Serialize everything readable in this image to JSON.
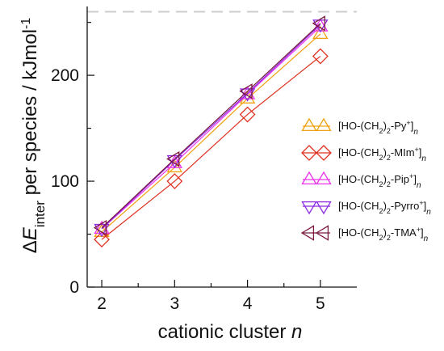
{
  "chart_data": {
    "type": "line",
    "xlabel": {
      "text": "cationic cluster",
      "italic_symbol": "n"
    },
    "ylabel": {
      "delta": "Δ",
      "symbol": "E",
      "subscript": "inter",
      "rest": " per species / kJmol",
      "superscript": "-1"
    },
    "x": [
      2,
      3,
      4,
      5
    ],
    "xlim": [
      1.8,
      5.5
    ],
    "ylim": [
      0,
      265
    ],
    "xticks": [
      "2",
      "3",
      "4",
      "5"
    ],
    "yticks": [
      {
        "value": 0,
        "label": "0"
      },
      {
        "value": 100,
        "label": "100"
      },
      {
        "value": 200,
        "label": "200"
      }
    ],
    "reference_line": {
      "value": 260,
      "style": "dashed",
      "color": "#cccccc"
    },
    "grid": false,
    "legend_position": "right",
    "series": [
      {
        "name": "[HO-(CH2)2-Py+]n",
        "label_parts": {
          "pre": "[HO-(CH",
          "sub1": "2",
          "mid": ")",
          "sub2": "2",
          "post": "-Py",
          "sup": "+",
          "end": "]",
          "sub3": "n"
        },
        "marker": "triangle-up",
        "color": "#f0a010",
        "values": [
          52,
          113,
          178,
          239
        ]
      },
      {
        "name": "[HO-(CH2)2-MIm+]n",
        "label_parts": {
          "pre": "[HO-(CH",
          "sub1": "2",
          "mid": ")",
          "sub2": "2",
          "post": "-MIm",
          "sup": "+",
          "end": "]",
          "sub3": "n"
        },
        "marker": "diamond",
        "color": "#e03020",
        "values": [
          45,
          100,
          163,
          218
        ]
      },
      {
        "name": "[HO-(CH2)2-Pip+]n",
        "label_parts": {
          "pre": "[HO-(CH",
          "sub1": "2",
          "mid": ")",
          "sub2": "2",
          "post": "-Pip",
          "sup": "+",
          "end": "]",
          "sub3": "n"
        },
        "marker": "triangle-up",
        "color": "#ee33ee",
        "values": [
          55,
          117,
          182,
          246
        ]
      },
      {
        "name": "[HO-(CH2)2-Pyrro+]n",
        "label_parts": {
          "pre": "[HO-(CH",
          "sub1": "2",
          "mid": ")",
          "sub2": "2",
          "post": "-Pyrro",
          "sup": "+",
          "end": "]",
          "sub3": "n"
        },
        "marker": "triangle-down",
        "color": "#8a2be2",
        "values": [
          55,
          120,
          183,
          248
        ]
      },
      {
        "name": "[HO-(CH2)2-TMA+]n",
        "label_parts": {
          "pre": "[HO-(CH",
          "sub1": "2",
          "mid": ")",
          "sub2": "2",
          "post": "-TMA",
          "sup": "+",
          "end": "]",
          "sub3": "n"
        },
        "marker": "triangle-left",
        "color": "#7a1a40",
        "values": [
          56,
          121,
          185,
          249
        ]
      }
    ]
  }
}
